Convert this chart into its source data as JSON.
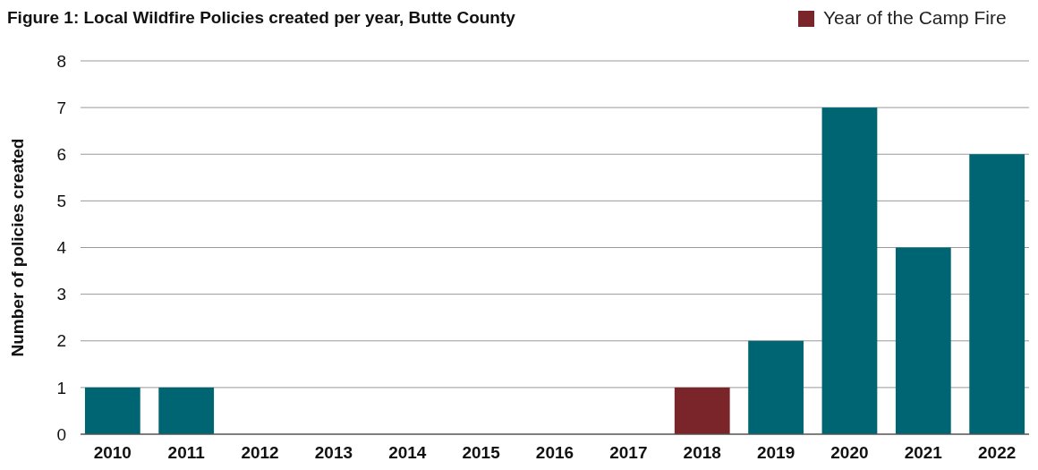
{
  "chart_data": {
    "type": "bar",
    "title": "Figure 1: Local Wildfire Policies created per year, Butte County",
    "ylabel": "Number of policies created",
    "categories": [
      "2010",
      "2011",
      "2012",
      "2013",
      "2014",
      "2015",
      "2016",
      "2017",
      "2018",
      "2019",
      "2020",
      "2021",
      "2022"
    ],
    "stacked": true,
    "series": [
      {
        "color": "#006573",
        "values": [
          1,
          1,
          0,
          0,
          0,
          0,
          0,
          0,
          null,
          2,
          7,
          4,
          6
        ]
      },
      {
        "name": "Year of the Camp Fire",
        "color": "#7a2529",
        "values": [
          null,
          null,
          null,
          null,
          null,
          null,
          null,
          null,
          1,
          null,
          null,
          null,
          null
        ]
      }
    ],
    "ylim": [
      0,
      8
    ],
    "yticks": [
      0,
      1,
      2,
      3,
      4,
      5,
      6,
      7,
      8
    ],
    "grid": "y",
    "legend": "top right"
  }
}
